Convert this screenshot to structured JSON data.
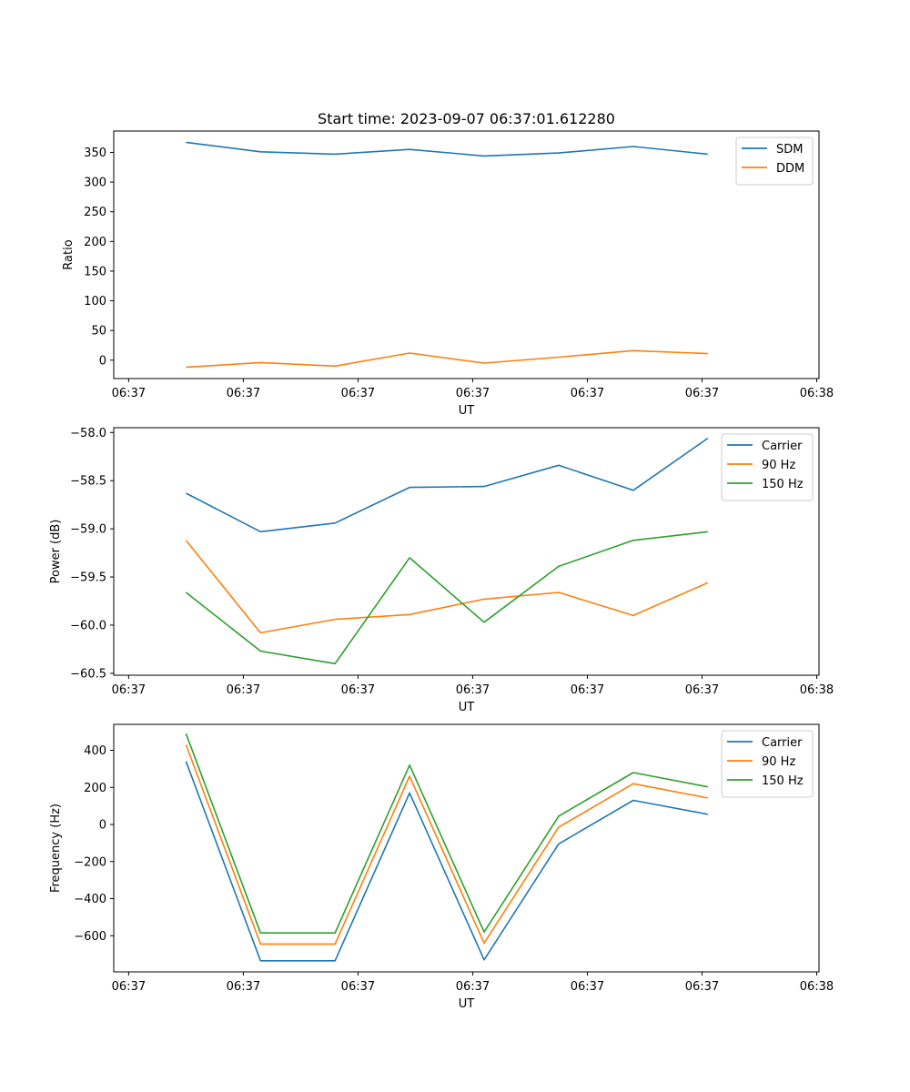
{
  "chart_data": [
    {
      "type": "line",
      "title": "Start time: 2023-09-07 06:37:01.612280",
      "xlabel": "UT",
      "ylabel": "Ratio",
      "x_ticks": [
        "06:37",
        "06:37",
        "06:37",
        "06:37",
        "06:37",
        "06:37",
        "06:38"
      ],
      "x_tick_values": [
        0,
        1,
        2,
        3,
        4,
        5,
        6
      ],
      "xlim": [
        -0.13,
        6.02
      ],
      "ylim": [
        -31,
        386
      ],
      "y_ticks": [
        0,
        50,
        100,
        150,
        200,
        250,
        300,
        350
      ],
      "x": [
        0.5,
        1.15,
        1.8,
        2.45,
        3.1,
        3.75,
        4.4,
        5.05
      ],
      "series": [
        {
          "name": "SDM",
          "color": "#1f77b4",
          "values": [
            367,
            351,
            347,
            355,
            344,
            349,
            360,
            347
          ]
        },
        {
          "name": "DDM",
          "color": "#ff7f0e",
          "values": [
            -12,
            -4,
            -10,
            12,
            -5,
            5,
            16,
            11
          ]
        }
      ],
      "legend": "top-right"
    },
    {
      "type": "line",
      "title": "",
      "xlabel": "UT",
      "ylabel": "Power (dB)",
      "x_ticks": [
        "06:37",
        "06:37",
        "06:37",
        "06:37",
        "06:37",
        "06:37",
        "06:38"
      ],
      "x_tick_values": [
        0,
        1,
        2,
        3,
        4,
        5,
        6
      ],
      "xlim": [
        -0.13,
        6.02
      ],
      "ylim": [
        -60.52,
        -57.95
      ],
      "y_ticks": [
        -60.5,
        -60.0,
        -59.5,
        -59.0,
        -58.5,
        -58.0
      ],
      "y_tick_labels": [
        "−60.5",
        "−60.0",
        "−59.5",
        "−59.0",
        "−58.5",
        "−58.0"
      ],
      "x": [
        0.5,
        1.15,
        1.8,
        2.45,
        3.1,
        3.75,
        4.4,
        5.05
      ],
      "series": [
        {
          "name": "Carrier",
          "color": "#1f77b4",
          "values": [
            -58.63,
            -59.03,
            -58.94,
            -58.57,
            -58.56,
            -58.34,
            -58.6,
            -58.06
          ]
        },
        {
          "name": "90 Hz",
          "color": "#ff7f0e",
          "values": [
            -59.12,
            -60.08,
            -59.94,
            -59.89,
            -59.73,
            -59.66,
            -59.9,
            -59.56
          ]
        },
        {
          "name": "150 Hz",
          "color": "#2ca02c",
          "values": [
            -59.66,
            -60.27,
            -60.4,
            -59.3,
            -59.97,
            -59.39,
            -59.12,
            -59.03
          ]
        }
      ],
      "legend": "top-right"
    },
    {
      "type": "line",
      "title": "",
      "xlabel": "UT",
      "ylabel": "Frequency (Hz)",
      "x_ticks": [
        "06:37",
        "06:37",
        "06:37",
        "06:37",
        "06:37",
        "06:37",
        "06:38"
      ],
      "x_tick_values": [
        0,
        1,
        2,
        3,
        4,
        5,
        6
      ],
      "xlim": [
        -0.13,
        6.02
      ],
      "ylim": [
        -795,
        540
      ],
      "y_ticks": [
        -600,
        -400,
        -200,
        0,
        200,
        400
      ],
      "y_tick_labels": [
        "−600",
        "−400",
        "−200",
        "0",
        "200",
        "400"
      ],
      "x": [
        0.5,
        1.15,
        1.8,
        2.45,
        3.1,
        3.75,
        4.4,
        5.05
      ],
      "series": [
        {
          "name": "Carrier",
          "color": "#1f77b4",
          "values": [
            340,
            -735,
            -735,
            170,
            -730,
            -105,
            130,
            55
          ]
        },
        {
          "name": "90 Hz",
          "color": "#ff7f0e",
          "values": [
            430,
            -645,
            -645,
            260,
            -640,
            -15,
            220,
            143
          ]
        },
        {
          "name": "150 Hz",
          "color": "#2ca02c",
          "values": [
            490,
            -585,
            -585,
            320,
            -580,
            45,
            280,
            203
          ]
        }
      ],
      "legend": "top-right"
    }
  ]
}
